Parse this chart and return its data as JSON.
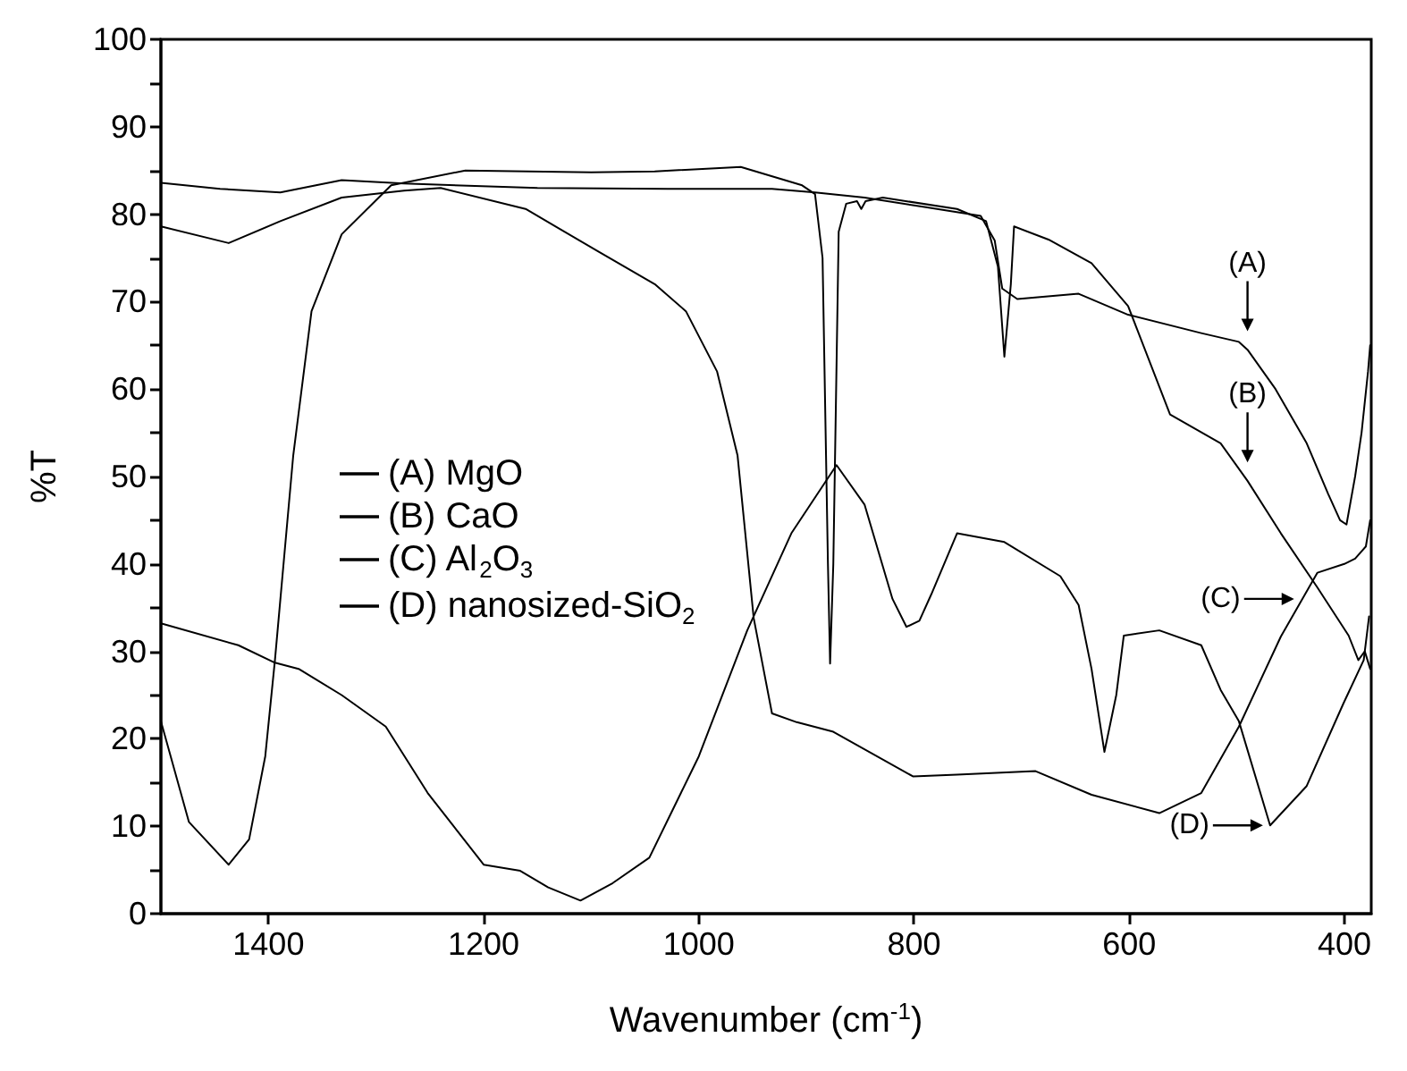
{
  "chart_data": {
    "type": "line",
    "xlabel": "Wavenumber (cm$^{-1}$)",
    "ylabel": "%T",
    "xlim": [
      1500,
      375
    ],
    "xticks": [
      1400,
      1200,
      1000,
      800,
      600,
      400
    ],
    "ylim": [
      0,
      100
    ],
    "yticks": [
      0,
      {
        "value": 5,
        "label": null
      },
      10,
      {
        "value": 15,
        "label": null
      },
      20,
      {
        "value": 25,
        "label": null
      },
      30,
      {
        "value": 35,
        "label": null
      },
      40,
      {
        "value": 45,
        "label": null
      },
      50,
      {
        "value": 55,
        "label": null
      },
      60,
      {
        "value": 65,
        "label": null
      },
      70,
      {
        "value": 75,
        "label": null
      },
      80,
      {
        "value": 85,
        "label": null
      },
      90,
      {
        "value": 95,
        "label": null
      },
      100
    ],
    "legend": "left",
    "marker": "none",
    "line_style": "solid",
    "series": [
      {
        "name": "(A) MgO",
        "color": "#000000",
        "x": [
          1500,
          1445,
          1389,
          1332,
          1274,
          1150,
          1029,
          932,
          892,
          846,
          789,
          738,
          725,
          718,
          704,
          647,
          601,
          533,
          498,
          490,
          464,
          435,
          415,
          404,
          398,
          390,
          384,
          378,
          376
        ],
        "values": [
          83.6,
          82.9,
          82.5,
          83.9,
          83.5,
          83,
          82.9,
          82.9,
          82.5,
          81.9,
          80.8,
          79.8,
          77,
          71.5,
          70.3,
          70.9,
          68.5,
          66.4,
          65.4,
          64.5,
          60,
          53.8,
          48,
          45,
          44.5,
          50,
          55,
          62,
          65
        ]
      },
      {
        "name": "(B) CaO",
        "color": "#000000",
        "x": [
          1500,
          1474,
          1437,
          1418,
          1403,
          1394,
          1377,
          1360,
          1332,
          1286,
          1217,
          1100,
          1041,
          961,
          904,
          892,
          885,
          880,
          878,
          875,
          870,
          863,
          853,
          849,
          845,
          829,
          760,
          733,
          722,
          716,
          710,
          707,
          675,
          635,
          601,
          562,
          515,
          490,
          459,
          425,
          396,
          387,
          381,
          376
        ],
        "values": [
          22,
          10.5,
          5.6,
          8.5,
          18,
          29,
          52.4,
          68.9,
          77.7,
          83.3,
          85,
          84.8,
          84.9,
          85.4,
          83.3,
          82.3,
          75,
          40,
          28.6,
          40,
          78,
          81.2,
          81.5,
          80.6,
          81.5,
          81.9,
          80.6,
          79.2,
          74,
          63.7,
          72,
          78.6,
          77.1,
          74.4,
          69.5,
          57.1,
          53.8,
          49.5,
          43.5,
          37.3,
          31.8,
          29,
          30,
          28
        ]
      },
      {
        "name": "(C) Al$_{2}$O$_{3}$",
        "color": "#000000",
        "x": [
          1500,
          1437,
          1389,
          1332,
          1274,
          1240,
          1161,
          1093,
          1041,
          1012,
          983,
          964,
          949,
          932,
          909,
          875,
          801,
          760,
          687,
          635,
          572,
          533,
          498,
          459,
          425,
          400,
          390,
          380,
          376
        ],
        "values": [
          78.6,
          76.7,
          79.2,
          81.9,
          82.7,
          83,
          80.6,
          75.7,
          72,
          68.9,
          62,
          52.4,
          33.8,
          22.9,
          21.9,
          20.8,
          15.7,
          15.9,
          16.3,
          13.6,
          11.5,
          13.8,
          21.4,
          31.7,
          39,
          40,
          40.6,
          42,
          45
        ]
      },
      {
        "name": "(D) nanosized-SiO$_{2}$",
        "color": "#000000",
        "x": [
          1500,
          1428,
          1394,
          1372,
          1332,
          1291,
          1252,
          1200,
          1166,
          1140,
          1110,
          1080,
          1046,
          1000,
          955,
          914,
          872,
          846,
          820,
          807,
          795,
          784,
          760,
          716,
          664,
          647,
          635,
          623,
          612,
          605,
          572,
          533,
          515,
          498,
          469,
          435,
          401,
          382,
          377
        ],
        "values": [
          33.2,
          30.7,
          28.7,
          28,
          25,
          21.4,
          13.8,
          5.6,
          4.9,
          3,
          1.5,
          3.5,
          6.4,
          18,
          32.4,
          43.5,
          51.3,
          46.8,
          36,
          32.8,
          33.5,
          36.5,
          43.5,
          42.5,
          38.6,
          35.3,
          28,
          18.5,
          25,
          31.8,
          32.4,
          30.7,
          25.6,
          22,
          10.1,
          14.6,
          24,
          29,
          34
        ]
      }
    ],
    "annotations": [
      {
        "text": "(A)",
        "x": 490,
        "y": 66
      },
      {
        "text": "(B)",
        "x": 490,
        "y": 51
      },
      {
        "text": "(C)",
        "x": 440,
        "y": 36
      },
      {
        "text": "(D)",
        "x": 469,
        "y": 10.1
      }
    ]
  }
}
